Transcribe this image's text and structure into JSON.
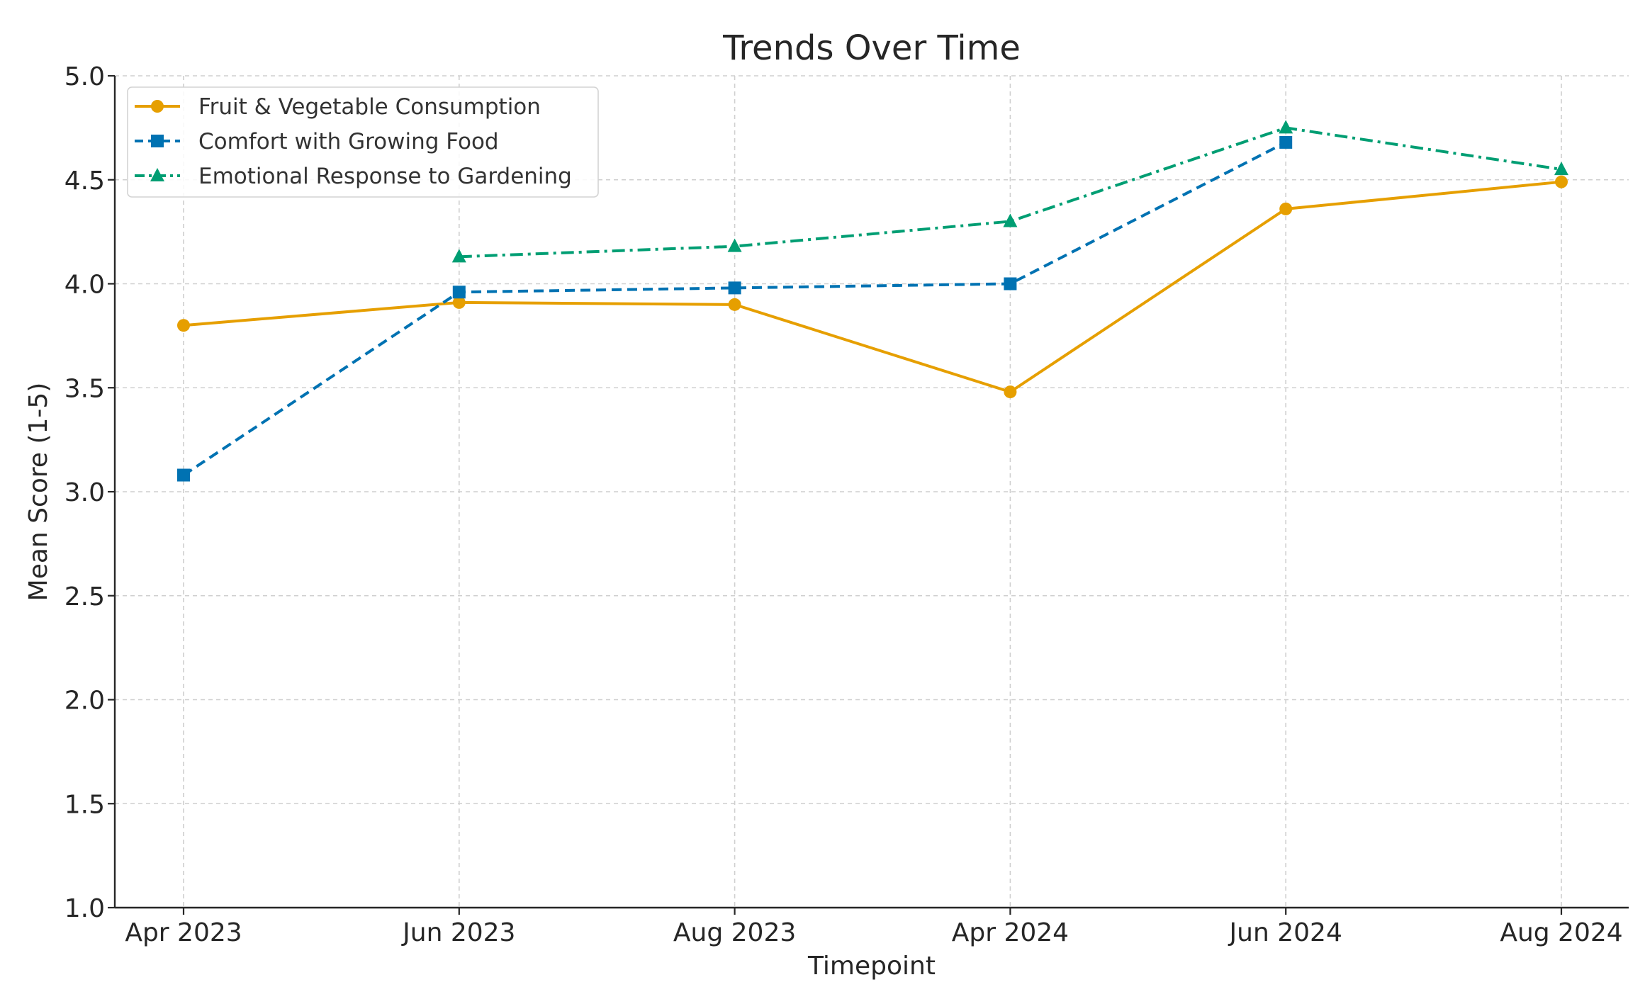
{
  "chart_data": {
    "type": "line",
    "title": "Trends Over Time",
    "xlabel": "Timepoint",
    "ylabel": "Mean Score (1-5)",
    "categories": [
      "Apr 2023",
      "Jun 2023",
      "Aug 2023",
      "Apr 2024",
      "Jun 2024",
      "Aug 2024"
    ],
    "ylim": [
      1.0,
      5.0
    ],
    "yticks": [
      "1.0",
      "1.5",
      "2.0",
      "2.5",
      "3.0",
      "3.5",
      "4.0",
      "4.5",
      "5.0"
    ],
    "grid": true,
    "legend_position": "top-left",
    "series": [
      {
        "name": "Fruit & Vegetable Consumption",
        "values": [
          3.8,
          3.91,
          3.9,
          3.48,
          4.36,
          4.49
        ],
        "color": "#E69F00",
        "line_style": "solid",
        "marker": "circle"
      },
      {
        "name": "Comfort with Growing Food",
        "values": [
          3.08,
          3.96,
          3.98,
          4.0,
          4.68,
          null
        ],
        "color": "#0072B2",
        "line_style": "dashed",
        "marker": "square"
      },
      {
        "name": "Emotional Response to Gardening",
        "values": [
          null,
          4.13,
          4.18,
          4.3,
          4.75,
          4.55
        ],
        "color": "#009E73",
        "line_style": "dashdot",
        "marker": "triangle"
      }
    ]
  }
}
